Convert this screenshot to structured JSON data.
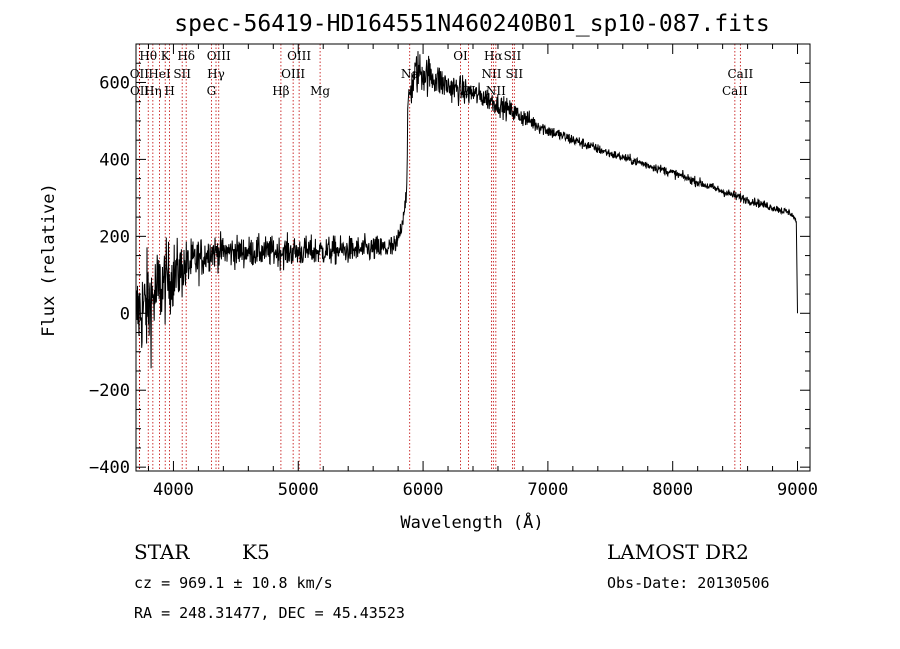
{
  "chart_data": {
    "type": "line",
    "title": "spec-56419-HD164551N460240B01_sp10-087.fits",
    "xlabel": "Wavelength (Å)",
    "ylabel": "Flux (relative)",
    "xlim": [
      3700,
      9100
    ],
    "ylim": [
      -410,
      700
    ],
    "xticks": [
      4000,
      5000,
      6000,
      7000,
      8000,
      9000
    ],
    "yticks": [
      -400,
      -200,
      0,
      200,
      400,
      600
    ],
    "series": [
      {
        "color": "#000000",
        "anchors": [
          {
            "x": 3700,
            "y": 0,
            "noise": 110
          },
          {
            "x": 3800,
            "y": 20,
            "noise": 140
          },
          {
            "x": 3900,
            "y": 70,
            "noise": 110
          },
          {
            "x": 4000,
            "y": 100,
            "noise": 90
          },
          {
            "x": 4100,
            "y": 120,
            "noise": 70
          },
          {
            "x": 4300,
            "y": 160,
            "noise": 45
          },
          {
            "x": 4600,
            "y": 160,
            "noise": 40
          },
          {
            "x": 5000,
            "y": 160,
            "noise": 40
          },
          {
            "x": 5500,
            "y": 165,
            "noise": 35
          },
          {
            "x": 5780,
            "y": 170,
            "noise": 35
          },
          {
            "x": 5830,
            "y": 230,
            "noise": 20
          },
          {
            "x": 5870,
            "y": 320,
            "noise": 25
          },
          {
            "x": 5880,
            "y": 560,
            "noise": 50
          },
          {
            "x": 5950,
            "y": 630,
            "noise": 60
          },
          {
            "x": 6050,
            "y": 620,
            "noise": 50
          },
          {
            "x": 6200,
            "y": 590,
            "noise": 40
          },
          {
            "x": 6500,
            "y": 560,
            "noise": 30
          },
          {
            "x": 6800,
            "y": 510,
            "noise": 25
          },
          {
            "x": 7000,
            "y": 475,
            "noise": 18
          },
          {
            "x": 7500,
            "y": 415,
            "noise": 12
          },
          {
            "x": 8000,
            "y": 365,
            "noise": 12
          },
          {
            "x": 8500,
            "y": 305,
            "noise": 12
          },
          {
            "x": 8950,
            "y": 260,
            "noise": 10
          },
          {
            "x": 8990,
            "y": 240,
            "noise": 5
          },
          {
            "x": 9000,
            "y": 0,
            "noise": 0
          }
        ]
      }
    ],
    "spectral_lines": [
      {
        "x": 3727,
        "label": "OII",
        "row": 2
      },
      {
        "x": 3729,
        "label": "OII",
        "row": 3
      },
      {
        "x": 3798,
        "label": "Hθ",
        "row": 1
      },
      {
        "x": 3835,
        "label": "Hη",
        "row": 3
      },
      {
        "x": 3889,
        "label": "HeI",
        "row": 2
      },
      {
        "x": 3934,
        "label": "K",
        "row": 1
      },
      {
        "x": 3969,
        "label": "H",
        "row": 3
      },
      {
        "x": 4070,
        "label": "SII",
        "row": 2
      },
      {
        "x": 4102,
        "label": "Hδ",
        "row": 1
      },
      {
        "x": 4304,
        "label": "G",
        "row": 3
      },
      {
        "x": 4341,
        "label": "Hγ",
        "row": 2
      },
      {
        "x": 4363,
        "label": "OIII",
        "row": 1
      },
      {
        "x": 4861,
        "label": "Hβ",
        "row": 3
      },
      {
        "x": 4959,
        "label": "OIII",
        "row": 2
      },
      {
        "x": 5007,
        "label": "OIII",
        "row": 1
      },
      {
        "x": 5175,
        "label": "Mg",
        "row": 3
      },
      {
        "x": 5893,
        "label": "Na",
        "row": 2
      },
      {
        "x": 6300,
        "label": "OI",
        "row": 1
      },
      {
        "x": 6364,
        "label": "OI",
        "row": 3
      },
      {
        "x": 6548,
        "label": "NII",
        "row": 2
      },
      {
        "x": 6563,
        "label": "Hα",
        "row": 1
      },
      {
        "x": 6583,
        "label": "NII",
        "row": 3
      },
      {
        "x": 6716,
        "label": "SII",
        "row": 1
      },
      {
        "x": 6731,
        "label": "SII",
        "row": 2
      },
      {
        "x": 8498,
        "label": "CaII",
        "row": 3
      },
      {
        "x": 8542,
        "label": "CaII",
        "row": 2
      }
    ],
    "grid": false,
    "legend": "none"
  },
  "info": {
    "class": "STAR",
    "subclass": "K5",
    "survey": "LAMOST DR2",
    "cz": "cz = 969.1 ± 10.8 km/s",
    "obs_date": "Obs-Date: 20130506",
    "coords": "RA = 248.31477, DEC =  45.43523"
  }
}
